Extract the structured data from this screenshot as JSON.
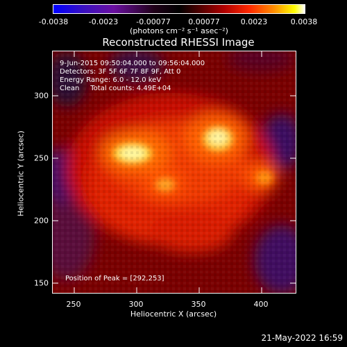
{
  "colorbar": {
    "ticks": [
      "-0.0038",
      "-0.0023",
      "-0.00077",
      "0.00077",
      "0.0023",
      "0.0038"
    ],
    "units": "(photons cm⁻² s⁻¹ asec⁻²)"
  },
  "title": "Reconstructed RHESSI Image",
  "info": {
    "time_range": "9-Jun-2015 09:50:04.000 to 09:56:04.000",
    "detectors": "Detectors: 3F 5F 6F 7F 8F 9F, Att 0",
    "energy": "Energy Range: 6.0 - 12.0 keV",
    "clean": "Clean     Total counts: 4.49E+04",
    "peak": "Position of Peak = [292,253]"
  },
  "axes": {
    "xlabel": "Heliocentric X (arcsec)",
    "ylabel": "Heliocentric Y (arcsec)",
    "xticks": [
      "250",
      "300",
      "350",
      "400"
    ],
    "yticks": [
      "300",
      "250",
      "200",
      "150"
    ]
  },
  "timestamp": "21-May-2022 16:59"
}
